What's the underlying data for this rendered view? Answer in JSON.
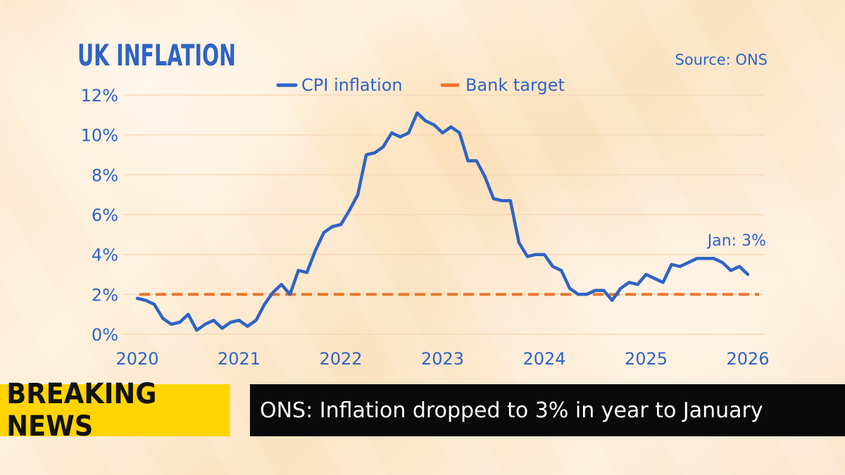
{
  "chart_data": {
    "type": "line",
    "title": "UK INFLATION",
    "source": "Source: ONS",
    "annotation": "Jan: 3%",
    "legend_position": "top-center",
    "x_ticks": [
      "2020",
      "2021",
      "2022",
      "2023",
      "2024",
      "2025",
      "2026"
    ],
    "y_ticks": [
      "0%",
      "2%",
      "4%",
      "6%",
      "8%",
      "10%",
      "12%"
    ],
    "xlim": [
      "2020-01",
      "2026-01"
    ],
    "ylim": [
      0,
      12
    ],
    "grid": true,
    "series": [
      {
        "name": "CPI inflation",
        "color": "#2f63c4",
        "style": "solid",
        "x": [
          "2020-01",
          "2020-02",
          "2020-03",
          "2020-04",
          "2020-05",
          "2020-06",
          "2020-07",
          "2020-08",
          "2020-09",
          "2020-10",
          "2020-11",
          "2020-12",
          "2021-01",
          "2021-02",
          "2021-03",
          "2021-04",
          "2021-05",
          "2021-06",
          "2021-07",
          "2021-08",
          "2021-09",
          "2021-10",
          "2021-11",
          "2021-12",
          "2022-01",
          "2022-02",
          "2022-03",
          "2022-04",
          "2022-05",
          "2022-06",
          "2022-07",
          "2022-08",
          "2022-09",
          "2022-10",
          "2022-11",
          "2022-12",
          "2023-01",
          "2023-02",
          "2023-03",
          "2023-04",
          "2023-05",
          "2023-06",
          "2023-07",
          "2023-08",
          "2023-09",
          "2023-10",
          "2023-11",
          "2023-12",
          "2024-01",
          "2024-02",
          "2024-03",
          "2024-04",
          "2024-05",
          "2024-06",
          "2024-07",
          "2024-08",
          "2024-09",
          "2024-10",
          "2024-11",
          "2024-12",
          "2025-01",
          "2025-02",
          "2025-03",
          "2025-04",
          "2025-05",
          "2025-06",
          "2025-07",
          "2025-08",
          "2025-09",
          "2025-10",
          "2025-11",
          "2025-12",
          "2026-01"
        ],
        "values": [
          1.8,
          1.7,
          1.5,
          0.8,
          0.5,
          0.6,
          1.0,
          0.2,
          0.5,
          0.7,
          0.3,
          0.6,
          0.7,
          0.4,
          0.7,
          1.5,
          2.1,
          2.5,
          2.0,
          3.2,
          3.1,
          4.2,
          5.1,
          5.4,
          5.5,
          6.2,
          7.0,
          9.0,
          9.1,
          9.4,
          10.1,
          9.9,
          10.1,
          11.1,
          10.7,
          10.5,
          10.1,
          10.4,
          10.1,
          8.7,
          8.7,
          7.9,
          6.8,
          6.7,
          6.7,
          4.6,
          3.9,
          4.0,
          4.0,
          3.4,
          3.2,
          2.3,
          2.0,
          2.0,
          2.2,
          2.2,
          1.7,
          2.3,
          2.6,
          2.5,
          3.0,
          2.8,
          2.6,
          3.5,
          3.4,
          3.6,
          3.8,
          3.8,
          3.8,
          3.6,
          3.2,
          3.4,
          3.0
        ]
      },
      {
        "name": "Bank target",
        "color": "#e8762d",
        "style": "dashed",
        "values": [
          2,
          2
        ]
      }
    ]
  },
  "ticker": {
    "label": "BREAKING NEWS",
    "headline": "ONS: Inflation dropped to 3% in year to January"
  },
  "colors": {
    "title": "#2f63c4",
    "axis_text": "#2f63c4",
    "grid": "#f4d8b8",
    "ticker_label_bg": "#ffd400",
    "ticker_text_bg": "#0a0a0a"
  }
}
